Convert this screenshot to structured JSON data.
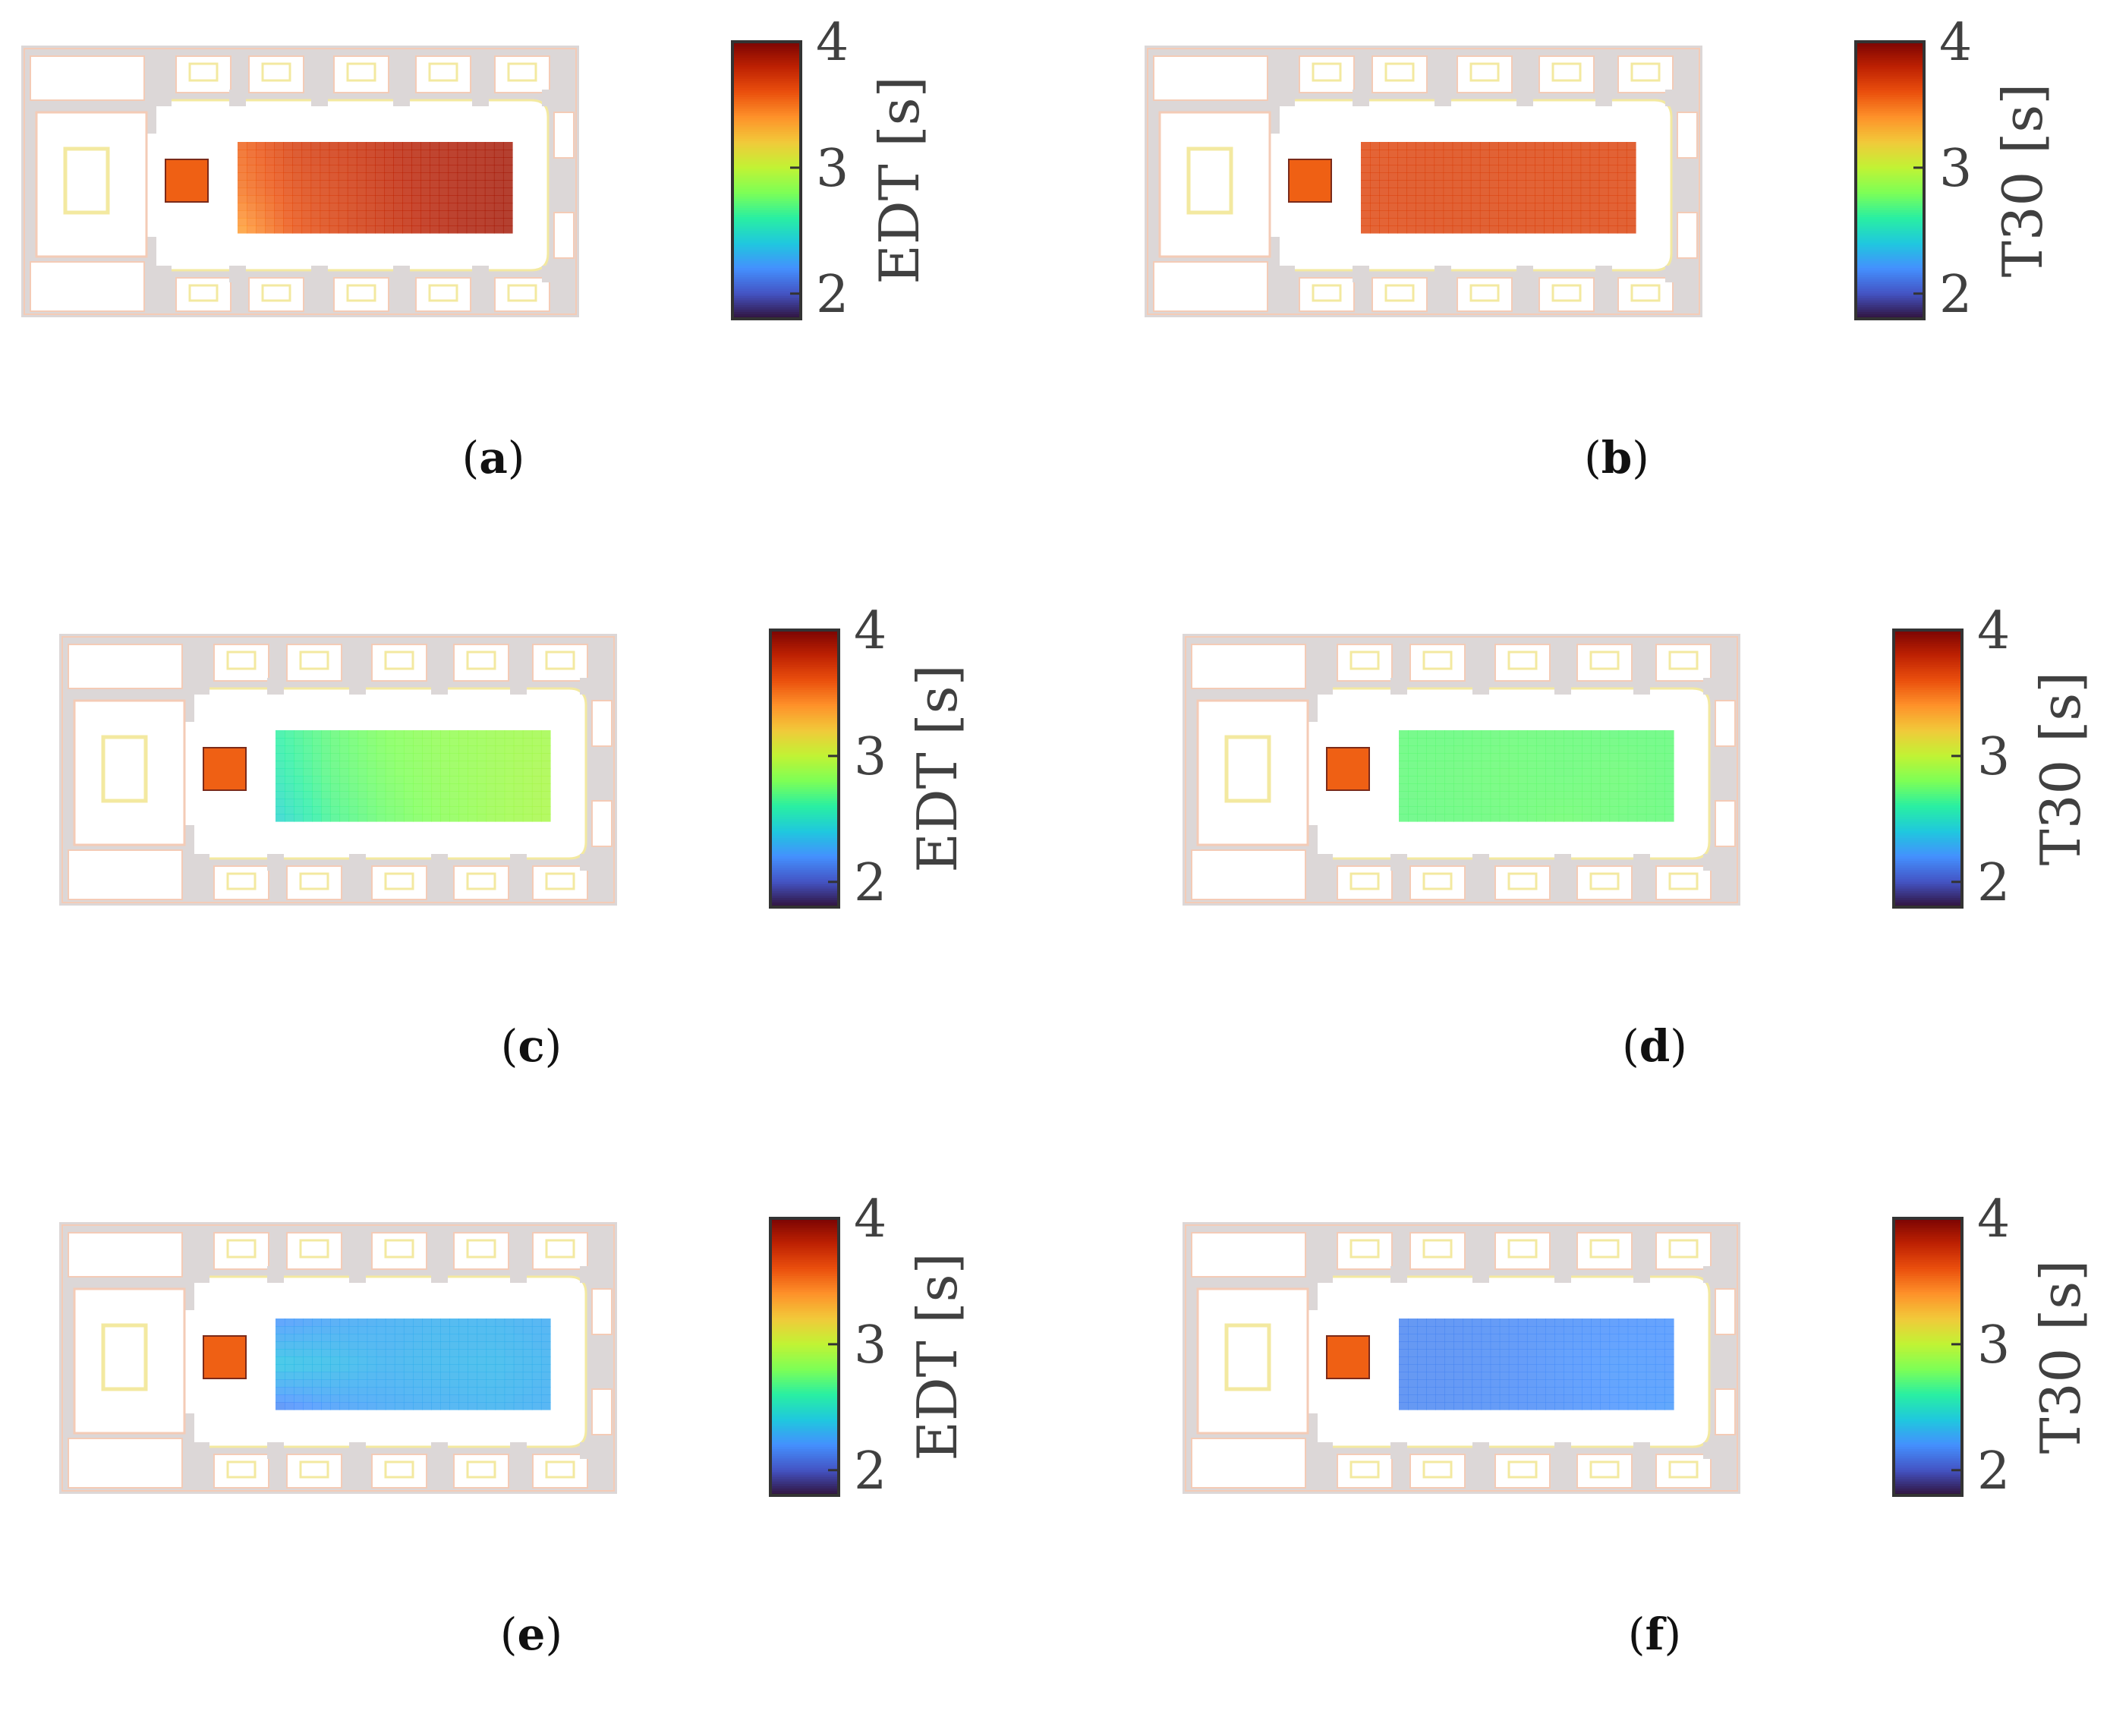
{
  "figure": {
    "colors": {
      "plan_wall": "#dcd7d7",
      "plan_trace": "#f4cbb6",
      "plan_line_yellow": "#f3e9a0",
      "source_fill": "#f0583c",
      "cb_frame": "#333333"
    },
    "colorbar_ticks": [
      "4",
      "3",
      "2"
    ],
    "colormap": [
      "#30123b",
      "#4454c4",
      "#4490fe",
      "#1fc8de",
      "#29efa2",
      "#7dff56",
      "#c1f334",
      "#f1ca3a",
      "#fe922a",
      "#ea4f0d",
      "#be2102",
      "#7a0403"
    ]
  },
  "chart_data": [
    {
      "type": "heatmap",
      "panel": "a",
      "caption_letter": "a",
      "metric": "EDT",
      "colorbar_label": "EDT [s]",
      "clim": [
        1.8,
        4
      ],
      "colorbar_ticks": [
        2,
        3,
        4
      ],
      "field_values": [
        [
          3.55,
          3.7,
          3.75,
          3.82,
          3.85,
          3.88
        ],
        [
          3.5,
          3.65,
          3.72,
          3.8,
          3.85,
          3.88
        ],
        [
          3.35,
          3.6,
          3.7,
          3.78,
          3.85,
          3.88
        ]
      ],
      "source_value": 3.55
    },
    {
      "type": "heatmap",
      "panel": "b",
      "caption_letter": "b",
      "metric": "T30",
      "colorbar_label": "T30 [s]",
      "clim": [
        1.8,
        4
      ],
      "colorbar_ticks": [
        2,
        3,
        4
      ],
      "field_values": [
        [
          3.65,
          3.66,
          3.67,
          3.67,
          3.66,
          3.67
        ],
        [
          3.66,
          3.67,
          3.67,
          3.66,
          3.67,
          3.66
        ],
        [
          3.65,
          3.66,
          3.67,
          3.67,
          3.66,
          3.67
        ]
      ],
      "source_value": 3.55
    },
    {
      "type": "heatmap",
      "panel": "c",
      "caption_letter": "c",
      "metric": "EDT",
      "colorbar_label": "EDT [s]",
      "clim": [
        1.8,
        4
      ],
      "colorbar_ticks": [
        2,
        3,
        4
      ],
      "field_values": [
        [
          2.6,
          2.72,
          2.8,
          2.85,
          2.88,
          2.9
        ],
        [
          2.55,
          2.7,
          2.78,
          2.84,
          2.88,
          2.92
        ],
        [
          2.45,
          2.65,
          2.75,
          2.82,
          2.88,
          2.92
        ]
      ],
      "source_value": 3.55
    },
    {
      "type": "heatmap",
      "panel": "d",
      "caption_letter": "d",
      "metric": "T30",
      "colorbar_label": "T30 [s]",
      "clim": [
        1.8,
        4
      ],
      "colorbar_ticks": [
        2,
        3,
        4
      ],
      "field_values": [
        [
          2.72,
          2.72,
          2.73,
          2.73,
          2.72,
          2.72
        ],
        [
          2.72,
          2.73,
          2.74,
          2.73,
          2.74,
          2.72
        ],
        [
          2.71,
          2.72,
          2.73,
          2.75,
          2.73,
          2.72
        ]
      ],
      "source_value": 3.55
    },
    {
      "type": "heatmap",
      "panel": "e",
      "caption_letter": "e",
      "metric": "EDT",
      "colorbar_label": "EDT [s]",
      "clim": [
        1.8,
        4
      ],
      "colorbar_ticks": [
        2,
        3,
        4
      ],
      "field_values": [
        [
          2.2,
          2.25,
          2.28,
          2.3,
          2.3,
          2.28
        ],
        [
          2.38,
          2.35,
          2.3,
          2.32,
          2.33,
          2.3
        ],
        [
          2.15,
          2.22,
          2.26,
          2.28,
          2.3,
          2.28
        ]
      ],
      "source_value": 3.55
    },
    {
      "type": "heatmap",
      "panel": "f",
      "caption_letter": "f",
      "metric": "T30",
      "colorbar_label": "T30 [s]",
      "clim": [
        1.8,
        4
      ],
      "colorbar_ticks": [
        2,
        3,
        4
      ],
      "field_values": [
        [
          2.15,
          2.16,
          2.17,
          2.18,
          2.19,
          2.2
        ],
        [
          2.15,
          2.16,
          2.17,
          2.19,
          2.21,
          2.2
        ],
        [
          2.15,
          2.16,
          2.17,
          2.18,
          2.2,
          2.22
        ]
      ],
      "source_value": 3.55
    }
  ]
}
